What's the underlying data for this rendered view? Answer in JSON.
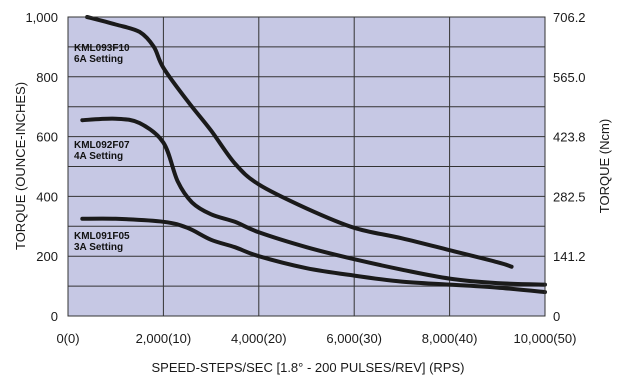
{
  "chart_data": {
    "type": "line",
    "xlabel": "SPEED-STEPS/SEC [1.8° - 200 PULSES/REV] (RPS)",
    "ylabel": "TORQUE (OUNCE-INCHES)",
    "y2label": "TORQUE (Ncm)",
    "xlim": [
      0,
      10000
    ],
    "ylim": [
      0,
      1000
    ],
    "x_ticks": [
      0,
      2000,
      4000,
      6000,
      8000,
      10000
    ],
    "x_tick_labels": [
      "0(0)",
      "2,000(10)",
      "4,000(20)",
      "6,000(30)",
      "8,000(40)",
      "10,000(50)"
    ],
    "y_ticks": [
      0,
      200,
      400,
      600,
      800,
      1000
    ],
    "y_tick_labels": [
      "0",
      "200",
      "400",
      "600",
      "800",
      "1,000"
    ],
    "y2_ticks": [
      0,
      200,
      400,
      600,
      800,
      1000
    ],
    "y2_tick_labels": [
      "0",
      "141.2",
      "282.5",
      "423.8",
      "565.0",
      "706.2"
    ],
    "grid": true,
    "background_color": "#c6c8e4",
    "line_color": "#1a1a1a",
    "series": [
      {
        "label_lines": [
          "KML093F10",
          "6A Setting"
        ],
        "points": [
          [
            400,
            1000
          ],
          [
            1000,
            975
          ],
          [
            1500,
            950
          ],
          [
            1800,
            900
          ],
          [
            2000,
            830
          ],
          [
            2500,
            720
          ],
          [
            3000,
            620
          ],
          [
            3500,
            510
          ],
          [
            4000,
            440
          ],
          [
            5000,
            360
          ],
          [
            6000,
            295
          ],
          [
            7000,
            260
          ],
          [
            8000,
            220
          ],
          [
            9000,
            180
          ],
          [
            9300,
            165
          ]
        ]
      },
      {
        "label_lines": [
          "KML092F07",
          "4A Setting"
        ],
        "points": [
          [
            300,
            655
          ],
          [
            1000,
            660
          ],
          [
            1500,
            645
          ],
          [
            2000,
            580
          ],
          [
            2300,
            450
          ],
          [
            2600,
            380
          ],
          [
            3000,
            340
          ],
          [
            3500,
            315
          ],
          [
            4000,
            280
          ],
          [
            5000,
            230
          ],
          [
            6000,
            190
          ],
          [
            7000,
            155
          ],
          [
            8000,
            125
          ],
          [
            9000,
            110
          ],
          [
            10000,
            105
          ]
        ]
      },
      {
        "label_lines": [
          "KML091F05",
          "3A Setting"
        ],
        "points": [
          [
            300,
            325
          ],
          [
            1000,
            325
          ],
          [
            2000,
            315
          ],
          [
            2500,
            295
          ],
          [
            3000,
            255
          ],
          [
            3500,
            230
          ],
          [
            4000,
            200
          ],
          [
            5000,
            160
          ],
          [
            6000,
            135
          ],
          [
            7000,
            115
          ],
          [
            8000,
            105
          ],
          [
            9000,
            95
          ],
          [
            10000,
            80
          ]
        ]
      }
    ]
  }
}
